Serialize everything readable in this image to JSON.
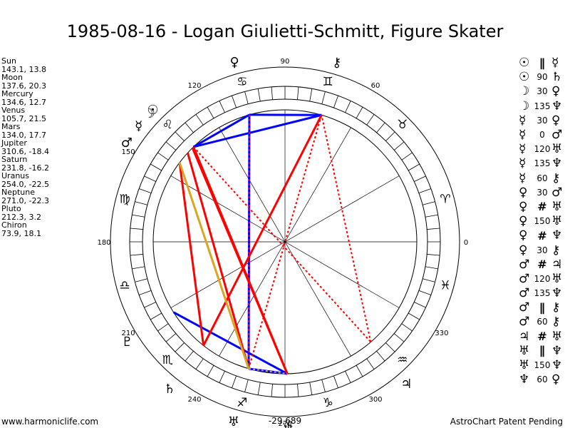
{
  "title": "1985-08-16 - Logan Giulietti-Schmitt, Figure Skater",
  "planet_positions": [
    {
      "name": "Sun",
      "value": "143.1, 13.8"
    },
    {
      "name": "Moon",
      "value": "137.6, 20.3"
    },
    {
      "name": "Mercury",
      "value": "134.6, 12.7"
    },
    {
      "name": "Venus",
      "value": "105.7, 21.5"
    },
    {
      "name": "Mars",
      "value": "134.0, 17.7"
    },
    {
      "name": "Jupiter",
      "value": "310.6, -18.4"
    },
    {
      "name": "Saturn",
      "value": "231.8, -16.2"
    },
    {
      "name": "Uranus",
      "value": "254.0, -22.5"
    },
    {
      "name": "Neptune",
      "value": "271.0, -22.3"
    },
    {
      "name": "Pluto",
      "value": "212.3, 3.2"
    },
    {
      "name": "Chiron",
      "value": "73.9, 18.1"
    }
  ],
  "aspects": [
    {
      "p1": "☉",
      "aspect": "∥",
      "p2": "☿"
    },
    {
      "p1": "☉",
      "aspect": "90",
      "p2": "♄"
    },
    {
      "p1": "☽",
      "aspect": "30",
      "p2": "♀"
    },
    {
      "p1": "☽",
      "aspect": "135",
      "p2": "♆"
    },
    {
      "p1": "☿",
      "aspect": "30",
      "p2": "♀"
    },
    {
      "p1": "☿",
      "aspect": "0",
      "p2": "♂"
    },
    {
      "p1": "☿",
      "aspect": "120",
      "p2": "♅"
    },
    {
      "p1": "☿",
      "aspect": "135",
      "p2": "♆"
    },
    {
      "p1": "☿",
      "aspect": "60",
      "p2": "⚷"
    },
    {
      "p1": "♀",
      "aspect": "30",
      "p2": "♂"
    },
    {
      "p1": "♀",
      "aspect": "#",
      "p2": "♅"
    },
    {
      "p1": "♀",
      "aspect": "150",
      "p2": "♅"
    },
    {
      "p1": "♀",
      "aspect": "#",
      "p2": "♆"
    },
    {
      "p1": "♀",
      "aspect": "30",
      "p2": "⚷"
    },
    {
      "p1": "♂",
      "aspect": "#",
      "p2": "♃"
    },
    {
      "p1": "♂",
      "aspect": "120",
      "p2": "♅"
    },
    {
      "p1": "♂",
      "aspect": "135",
      "p2": "♆"
    },
    {
      "p1": "♂",
      "aspect": "∥",
      "p2": "⚷"
    },
    {
      "p1": "♂",
      "aspect": "60",
      "p2": "⚷"
    },
    {
      "p1": "♃",
      "aspect": "#",
      "p2": "♅"
    },
    {
      "p1": "♅",
      "aspect": "∥",
      "p2": "♆"
    },
    {
      "p1": "♅",
      "aspect": "150",
      "p2": "♆"
    },
    {
      "p1": "♆",
      "aspect": "60",
      "p2": "♀"
    }
  ],
  "wheel": {
    "degree_labels": [
      "90",
      "60",
      "120",
      "150",
      "180",
      "0",
      "210",
      "330",
      "240",
      "300",
      "270"
    ],
    "midpoint_label": "-29,689",
    "zodiac_signs": [
      {
        "name": "aries",
        "glyph": "♈",
        "lon": 0
      },
      {
        "name": "taurus",
        "glyph": "♉",
        "lon": 30
      },
      {
        "name": "gemini",
        "glyph": "♊",
        "lon": 60
      },
      {
        "name": "cancer",
        "glyph": "♋",
        "lon": 90
      },
      {
        "name": "leo",
        "glyph": "♌",
        "lon": 120
      },
      {
        "name": "virgo",
        "glyph": "♍",
        "lon": 150
      },
      {
        "name": "libra",
        "glyph": "♎",
        "lon": 180
      },
      {
        "name": "scorpio",
        "glyph": "♏",
        "lon": 210
      },
      {
        "name": "sagittarius",
        "glyph": "♐",
        "lon": 240
      },
      {
        "name": "capricorn",
        "glyph": "♑",
        "lon": 270
      },
      {
        "name": "aquarius",
        "glyph": "♒",
        "lon": 300
      },
      {
        "name": "pisces",
        "glyph": "♓",
        "lon": 330
      }
    ],
    "planets": [
      {
        "name": "sun",
        "glyph": "☉",
        "lon": 143.1
      },
      {
        "name": "moon",
        "glyph": "☽",
        "lon": 137.6
      },
      {
        "name": "mercury",
        "glyph": "☿",
        "lon": 134.6
      },
      {
        "name": "venus",
        "glyph": "♀",
        "lon": 105.7
      },
      {
        "name": "mars",
        "glyph": "♂",
        "lon": 134.0
      },
      {
        "name": "jupiter",
        "glyph": "♃",
        "lon": 310.6
      },
      {
        "name": "saturn",
        "glyph": "♄",
        "lon": 231.8
      },
      {
        "name": "uranus",
        "glyph": "♅",
        "lon": 254.0
      },
      {
        "name": "neptune",
        "glyph": "♆",
        "lon": 271.0
      },
      {
        "name": "pluto",
        "glyph": "♇",
        "lon": 212.3
      },
      {
        "name": "chiron",
        "glyph": "⚷",
        "lon": 73.9
      }
    ],
    "aspect_lines": [
      {
        "from": "venus",
        "to": "chiron",
        "color": "#0000ff",
        "style": "solid"
      },
      {
        "from": "venus",
        "to": "mars",
        "color": "#0000ff",
        "style": "solid"
      },
      {
        "from": "mars",
        "to": "chiron",
        "color": "#0000ff",
        "style": "solid"
      },
      {
        "from": "venus",
        "to": "uranus",
        "color": "#0000ff",
        "style": "solid"
      },
      {
        "from": "uranus",
        "to": "neptune",
        "color": "#0000ff",
        "style": "solid"
      },
      {
        "from": "pluto",
        "to": "neptune",
        "color": "#0000ff",
        "style": "solid"
      },
      {
        "from": "saturn",
        "to": "chiron",
        "color": "#ff0000",
        "style": "solid"
      },
      {
        "from": "sun",
        "to": "saturn",
        "color": "#ff0000",
        "style": "solid"
      },
      {
        "from": "mars",
        "to": "neptune",
        "color": "#ff0000",
        "style": "solid"
      },
      {
        "from": "mercury",
        "to": "neptune",
        "color": "#ff0000",
        "style": "solid"
      },
      {
        "from": "moon",
        "to": "uranus",
        "color": "#ff0000",
        "style": "solid"
      },
      {
        "from": "jupiter",
        "to": "chiron",
        "color": "#ff0000",
        "style": "dotted"
      },
      {
        "from": "mars",
        "to": "jupiter",
        "color": "#ff0000",
        "style": "dotted"
      },
      {
        "from": "venus",
        "to": "uranus",
        "color": "#ff0000",
        "style": "dotted"
      },
      {
        "from": "uranus",
        "to": "chiron",
        "color": "#ff0000",
        "style": "dotted"
      },
      {
        "from": "sun",
        "to": "uranus",
        "color": "#daa520",
        "style": "solid"
      },
      {
        "from": "sun",
        "to": "uranus",
        "color": "#daa520",
        "style": "dotted"
      },
      {
        "from": "uranus",
        "to": "neptune",
        "color": "#daa520",
        "style": "dotted"
      }
    ]
  },
  "footer": {
    "left": "www.harmoniclife.com",
    "right": "AstroChart Patent Pending"
  }
}
